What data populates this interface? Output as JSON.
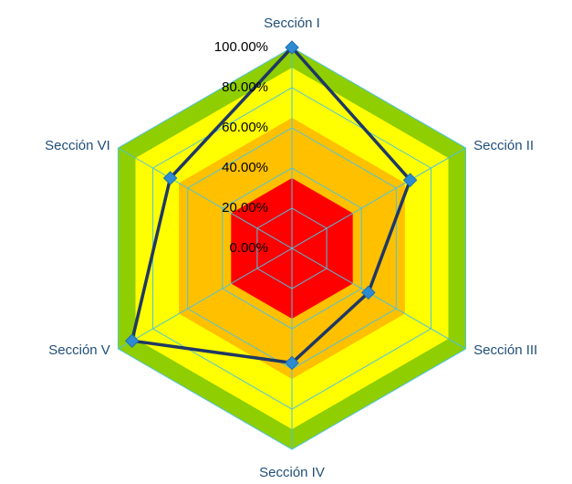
{
  "chart_data": {
    "type": "radar",
    "categories": [
      "Sección I",
      "Sección II",
      "Sección III",
      "Sección IV",
      "Sección V",
      "Sección VI"
    ],
    "ylim": [
      0,
      100
    ],
    "yticks": [
      {
        "value": 0,
        "label": "0.00%"
      },
      {
        "value": 20,
        "label": "20.00%"
      },
      {
        "value": 40,
        "label": "40.00%"
      },
      {
        "value": 60,
        "label": "60.00%"
      },
      {
        "value": 80,
        "label": "80.00%"
      },
      {
        "value": 100,
        "label": "100.00%"
      }
    ],
    "grid": true,
    "grid_color": "#4bc3e0",
    "series": [
      {
        "color": "#8fce00",
        "fill": true,
        "values": [
          100,
          100,
          100,
          100,
          100,
          100
        ]
      },
      {
        "color": "#ffff00",
        "fill": true,
        "values": [
          90,
          90,
          90,
          90,
          90,
          90
        ]
      },
      {
        "color": "#ffc000",
        "fill": true,
        "values": [
          65,
          65,
          65,
          65,
          65,
          65
        ]
      },
      {
        "color": "#ff0000",
        "fill": true,
        "values": [
          35,
          35,
          35,
          35,
          35,
          35
        ]
      },
      {
        "color": "#1f3864",
        "fill": false,
        "marker_color": "#2e8bd0",
        "values": [
          100,
          68,
          44,
          57,
          92,
          70
        ]
      }
    ]
  }
}
